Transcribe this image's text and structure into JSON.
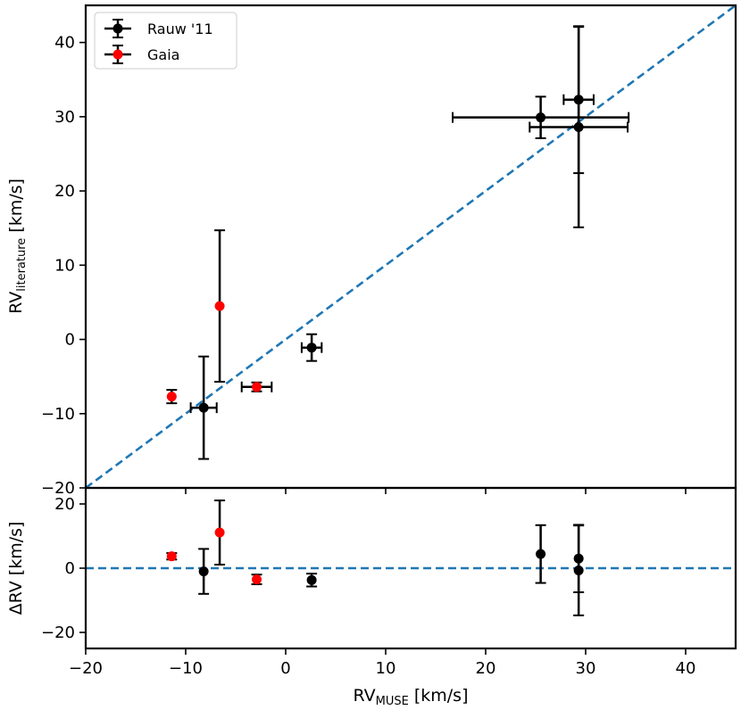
{
  "chart_data": {
    "type": "scatter",
    "x_axis": {
      "label_main": "RV",
      "label_sub": "MUSE",
      "label_unit": "[km/s]",
      "range": [
        -20,
        45
      ],
      "ticks": [
        -20,
        -10,
        0,
        10,
        20,
        30,
        40
      ],
      "tick_labels": [
        "−20",
        "−10",
        "0",
        "10",
        "20",
        "30",
        "40"
      ]
    },
    "top_panel": {
      "y_label_main": "RV",
      "y_label_sub": "literature",
      "y_label_unit": "[km/s]",
      "y_range": [
        -20,
        45
      ],
      "y_ticks": [
        -20,
        -10,
        0,
        10,
        20,
        30,
        40
      ],
      "y_tick_labels": [
        "−20",
        "−10",
        "0",
        "10",
        "20",
        "30",
        "40"
      ],
      "reference_line": {
        "type": "y=x",
        "color": "#1f77b4",
        "style": "dashed"
      }
    },
    "bottom_panel": {
      "y_label": "ΔRV [km/s]",
      "y_range": [
        -25,
        25
      ],
      "y_ticks": [
        -20,
        0,
        20
      ],
      "y_tick_labels": [
        "−20",
        "0",
        "20"
      ],
      "reference_line": {
        "type": "y=0",
        "color": "#1f77b4",
        "style": "dashed"
      }
    },
    "legend": {
      "position": "top-left",
      "entries": [
        {
          "label": "Rauw '11",
          "color": "#000000"
        },
        {
          "label": "Gaia",
          "color": "#ff0000"
        }
      ]
    },
    "series": [
      {
        "name": "Rauw '11",
        "color": "#000000",
        "points": [
          {
            "x": -8.2,
            "xerr": 1.3,
            "y": -9.2,
            "yerr": 6.9,
            "dy": -1.0,
            "dyerr": 7.0
          },
          {
            "x": 2.6,
            "xerr": 1.0,
            "y": -1.1,
            "yerr": 1.8,
            "dy": -3.7,
            "dyerr": 2.0
          },
          {
            "x": 25.5,
            "xerr": 8.8,
            "y": 29.9,
            "yerr": 2.8,
            "dy": 4.4,
            "dyerr": 9.0
          },
          {
            "x": 29.3,
            "xerr": 1.5,
            "y": 32.3,
            "yerr": 9.9,
            "dy": 3.0,
            "dyerr": 10.5
          },
          {
            "x": 29.3,
            "xerr": 4.9,
            "y": 28.6,
            "yerr": 13.5,
            "dy": -0.7,
            "dyerr": 14.0
          }
        ]
      },
      {
        "name": "Gaia",
        "color": "#ff0000",
        "points": [
          {
            "x": -11.4,
            "xerr": 0.0,
            "y": -7.7,
            "yerr": 0.9,
            "dy": 3.7,
            "dyerr": 1.0
          },
          {
            "x": -6.6,
            "xerr": 0.0,
            "y": 4.5,
            "yerr": 10.2,
            "dy": 11.1,
            "dyerr": 10.0
          },
          {
            "x": -2.9,
            "xerr": 1.5,
            "y": -6.4,
            "yerr": 0.6,
            "dy": -3.5,
            "dyerr": 1.5
          }
        ]
      }
    ]
  }
}
